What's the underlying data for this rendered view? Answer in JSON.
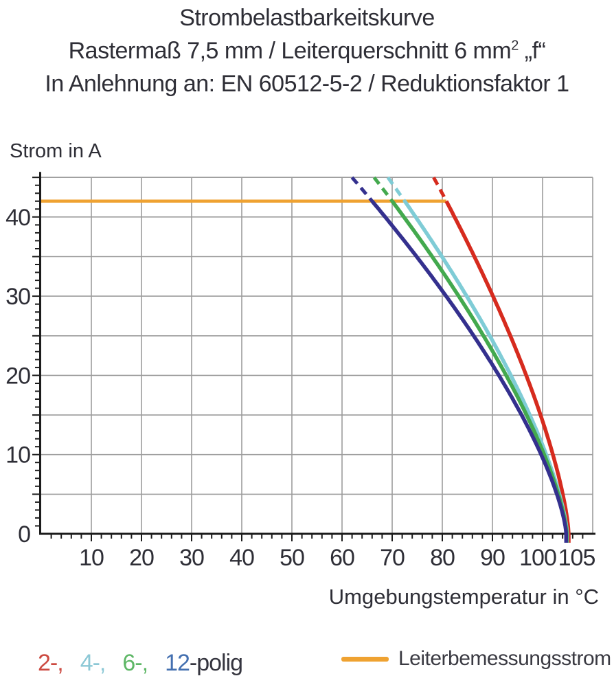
{
  "header": {
    "title_line1": "Strombelastbarkeitskurve",
    "title_line2_prefix": "Rastermaß 7,5 mm / Leiterquerschnitt 6 mm",
    "title_line2_sup": "2",
    "title_line2_suffix": " „f“",
    "title_line3": "In Anlehnung an: EN 60512-5-2 / Reduktionsfaktor 1"
  },
  "axes": {
    "y_label": "Strom in A",
    "x_label": "Umgebungstemperatur in °C"
  },
  "legend": {
    "pole_items": [
      {
        "label": "2-,",
        "color": "#cc4a41"
      },
      {
        "label": "4-,",
        "color": "#8cc8d6"
      },
      {
        "label": "6-,",
        "color": "#5eb766"
      },
      {
        "label": "12",
        "color": "#4470b0"
      }
    ],
    "pole_suffix": "-polig",
    "rated_label": "Leiterbemessungsstrom",
    "rated_swatch_color": "#efa231"
  },
  "chart_data": {
    "type": "line",
    "title": "Strombelastbarkeitskurve",
    "xlabel": "Umgebungstemperatur in °C",
    "ylabel": "Strom in A",
    "xlim": [
      0,
      110
    ],
    "ylim": [
      0,
      45
    ],
    "x_tick_labels": [
      10,
      20,
      30,
      40,
      50,
      60,
      70,
      80,
      90,
      100,
      105
    ],
    "x_grid_step": 10,
    "x_minor_step": 2,
    "y_tick_labels": [
      0,
      10,
      20,
      30,
      40
    ],
    "y_grid_step": 5,
    "y_minor_step": 1,
    "grid": true,
    "legend_position": "bottom",
    "rated_current_A": 42,
    "rated_line": {
      "name": "Leiterbemessungsstrom",
      "color": "#efa231",
      "I": 42,
      "T_start": 0,
      "T_end": 80.8
    },
    "curve_model": "T(I) = zero_T - (zero_T - rated_T) * (I/42)^(1/0.7); drawn dashed above 42 A, solid below",
    "series": [
      {
        "name": "2-polig",
        "color": "#d62b1e",
        "rated_T": 80.8,
        "zero_T": 105.2,
        "exponent": 0.7,
        "points_T_I": [
          [
            78.3,
            45
          ],
          [
            80.8,
            42
          ],
          [
            82.4,
            40
          ],
          [
            86.4,
            35
          ],
          [
            90.1,
            30
          ],
          [
            93.6,
            25
          ],
          [
            96.7,
            20
          ],
          [
            99.6,
            15
          ],
          [
            102.1,
            10
          ],
          [
            104.0,
            5
          ],
          [
            105.2,
            0
          ]
        ]
      },
      {
        "name": "4-polig",
        "color": "#7fccd6",
        "rated_T": 72.5,
        "zero_T": 104.9,
        "exponent": 0.7,
        "points_T_I": [
          [
            69.1,
            45
          ],
          [
            72.5,
            42
          ],
          [
            74.7,
            40
          ],
          [
            79.9,
            35
          ],
          [
            84.9,
            30
          ],
          [
            89.5,
            25
          ],
          [
            93.7,
            20
          ],
          [
            97.5,
            15
          ],
          [
            100.7,
            10
          ],
          [
            103.4,
            5
          ],
          [
            104.9,
            0
          ]
        ]
      },
      {
        "name": "6-polig",
        "color": "#43a94e",
        "rated_T": 70.0,
        "zero_T": 104.8,
        "exponent": 0.7,
        "points_T_I": [
          [
            66.4,
            45
          ],
          [
            70.0,
            42
          ],
          [
            72.3,
            40
          ],
          [
            78.0,
            35
          ],
          [
            83.3,
            30
          ],
          [
            88.2,
            25
          ],
          [
            92.7,
            20
          ],
          [
            96.8,
            15
          ],
          [
            100.3,
            10
          ],
          [
            103.1,
            5
          ],
          [
            104.8,
            0
          ]
        ]
      },
      {
        "name": "12-polig",
        "color": "#34308e",
        "rated_T": 66.0,
        "zero_T": 104.7,
        "exponent": 0.7,
        "points_T_I": [
          [
            62.0,
            45
          ],
          [
            66.0,
            42
          ],
          [
            68.6,
            40
          ],
          [
            74.9,
            35
          ],
          [
            80.8,
            30
          ],
          [
            86.3,
            25
          ],
          [
            91.3,
            20
          ],
          [
            95.8,
            15
          ],
          [
            99.7,
            10
          ],
          [
            102.9,
            5
          ],
          [
            104.7,
            0
          ]
        ]
      }
    ],
    "colors": {
      "grid": "#9c9c9c",
      "axis": "#1c1c1c",
      "text": "#2e2e36"
    }
  }
}
